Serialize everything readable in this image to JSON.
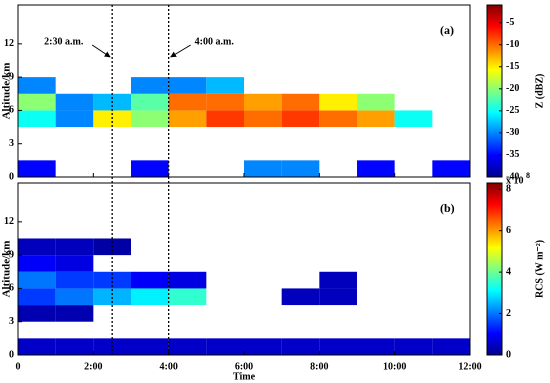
{
  "chart_data": [
    {
      "type": "heatmap",
      "panel_label": "(a)",
      "ylabel": "Altitude/km",
      "xlim": [
        0,
        12
      ],
      "xticks": [
        0,
        2,
        4,
        6,
        8,
        10,
        12
      ],
      "ylim": [
        0,
        15.5
      ],
      "yticks": [
        0,
        3,
        6,
        9,
        12
      ],
      "x_bins": [
        0,
        1,
        2,
        3,
        4,
        5,
        6,
        7,
        8,
        9,
        10,
        11,
        12
      ],
      "y_bins": [
        0,
        1.5,
        3,
        4.5,
        6,
        7.5,
        9,
        10.5,
        12,
        13.5,
        15
      ],
      "z": [
        [
          -35,
          null,
          null,
          -35,
          null,
          null,
          -30,
          -30,
          null,
          -35,
          null,
          -35
        ],
        [
          null,
          null,
          null,
          null,
          null,
          null,
          null,
          null,
          null,
          null,
          null,
          null
        ],
        [
          null,
          null,
          null,
          null,
          null,
          null,
          null,
          null,
          null,
          null,
          null,
          null
        ],
        [
          -25,
          -30,
          -15,
          -20,
          -12,
          -8,
          -10,
          -8,
          -10,
          -12,
          -25,
          null
        ],
        [
          -20,
          -30,
          -28,
          -22,
          -10,
          -10,
          -12,
          -10,
          -15,
          -20,
          null,
          null
        ],
        [
          -30,
          null,
          null,
          -30,
          -30,
          -28,
          null,
          null,
          null,
          null,
          null,
          null
        ],
        [
          null,
          null,
          null,
          null,
          null,
          null,
          null,
          null,
          null,
          null,
          null,
          null
        ],
        [
          null,
          null,
          null,
          null,
          null,
          null,
          null,
          null,
          null,
          null,
          null,
          null
        ],
        [
          null,
          null,
          null,
          null,
          null,
          null,
          null,
          null,
          null,
          null,
          null,
          null
        ],
        [
          null,
          null,
          null,
          null,
          null,
          null,
          null,
          null,
          null,
          null,
          null,
          null
        ]
      ],
      "colormap": "jet",
      "clim": [
        -40,
        -1
      ],
      "cticks": [
        -40,
        -35,
        -30,
        -25,
        -20,
        -15,
        -10,
        -5
      ],
      "colorbar_label": "Z (dBZ)",
      "annotations": [
        {
          "text": "2:30 a.m.",
          "x": 2.5
        },
        {
          "text": "4:00 a.m.",
          "x": 4
        }
      ]
    },
    {
      "type": "heatmap",
      "panel_label": "(b)",
      "ylabel": "Altitude/km",
      "xlabel": "Time",
      "xlim": [
        0,
        12
      ],
      "xticks": [
        0,
        {
          "value": 2,
          "label": "2:00"
        },
        {
          "value": 4,
          "label": "4:00"
        },
        {
          "value": 6,
          "label": "6:00"
        },
        {
          "value": 8,
          "label": "8:00"
        },
        {
          "value": 10,
          "label": "10:00"
        },
        {
          "value": 12,
          "label": "12:00"
        }
      ],
      "ylim": [
        0,
        15.5
      ],
      "yticks": [
        0,
        3,
        6,
        9,
        12
      ],
      "x_bins": [
        0,
        1,
        2,
        3,
        4,
        5,
        6,
        7,
        8,
        9,
        10,
        11,
        12
      ],
      "y_bins": [
        0,
        1.5,
        3,
        4.5,
        6,
        7.5,
        9,
        10.5,
        12,
        13.5,
        15
      ],
      "z": [
        [
          0.6,
          0.6,
          0.6,
          0.6,
          0.6,
          0.6,
          0.6,
          0.6,
          0.6,
          0.6,
          0.6,
          0.6
        ],
        [
          null,
          null,
          null,
          null,
          null,
          null,
          null,
          null,
          null,
          null,
          null,
          null
        ],
        [
          0.4,
          0.4,
          null,
          null,
          null,
          null,
          null,
          null,
          null,
          null,
          null,
          null
        ],
        [
          1.5,
          2,
          2.5,
          3,
          3.5,
          null,
          null,
          0.5,
          0.5,
          null,
          null,
          null
        ],
        [
          2,
          1.5,
          1.5,
          1,
          0.8,
          null,
          null,
          null,
          0.5,
          null,
          null,
          null
        ],
        [
          1,
          0.8,
          null,
          null,
          null,
          null,
          null,
          null,
          null,
          null,
          null,
          null
        ],
        [
          0.5,
          0.5,
          0.3,
          null,
          null,
          null,
          null,
          null,
          null,
          null,
          null,
          null
        ],
        [
          null,
          null,
          null,
          null,
          null,
          null,
          null,
          null,
          null,
          null,
          null,
          null
        ],
        [
          null,
          null,
          null,
          null,
          null,
          null,
          null,
          null,
          null,
          null,
          null,
          null
        ],
        [
          null,
          null,
          null,
          null,
          null,
          null,
          null,
          null,
          null,
          null,
          null,
          null
        ]
      ],
      "colormap": "jet",
      "clim": [
        0,
        8.3
      ],
      "cticks": [
        0,
        2,
        4,
        6,
        8
      ],
      "colorbar_label": "RCS (W m⁻²)",
      "cscale_label": "x 10",
      "cscale_exponent": "8"
    }
  ]
}
